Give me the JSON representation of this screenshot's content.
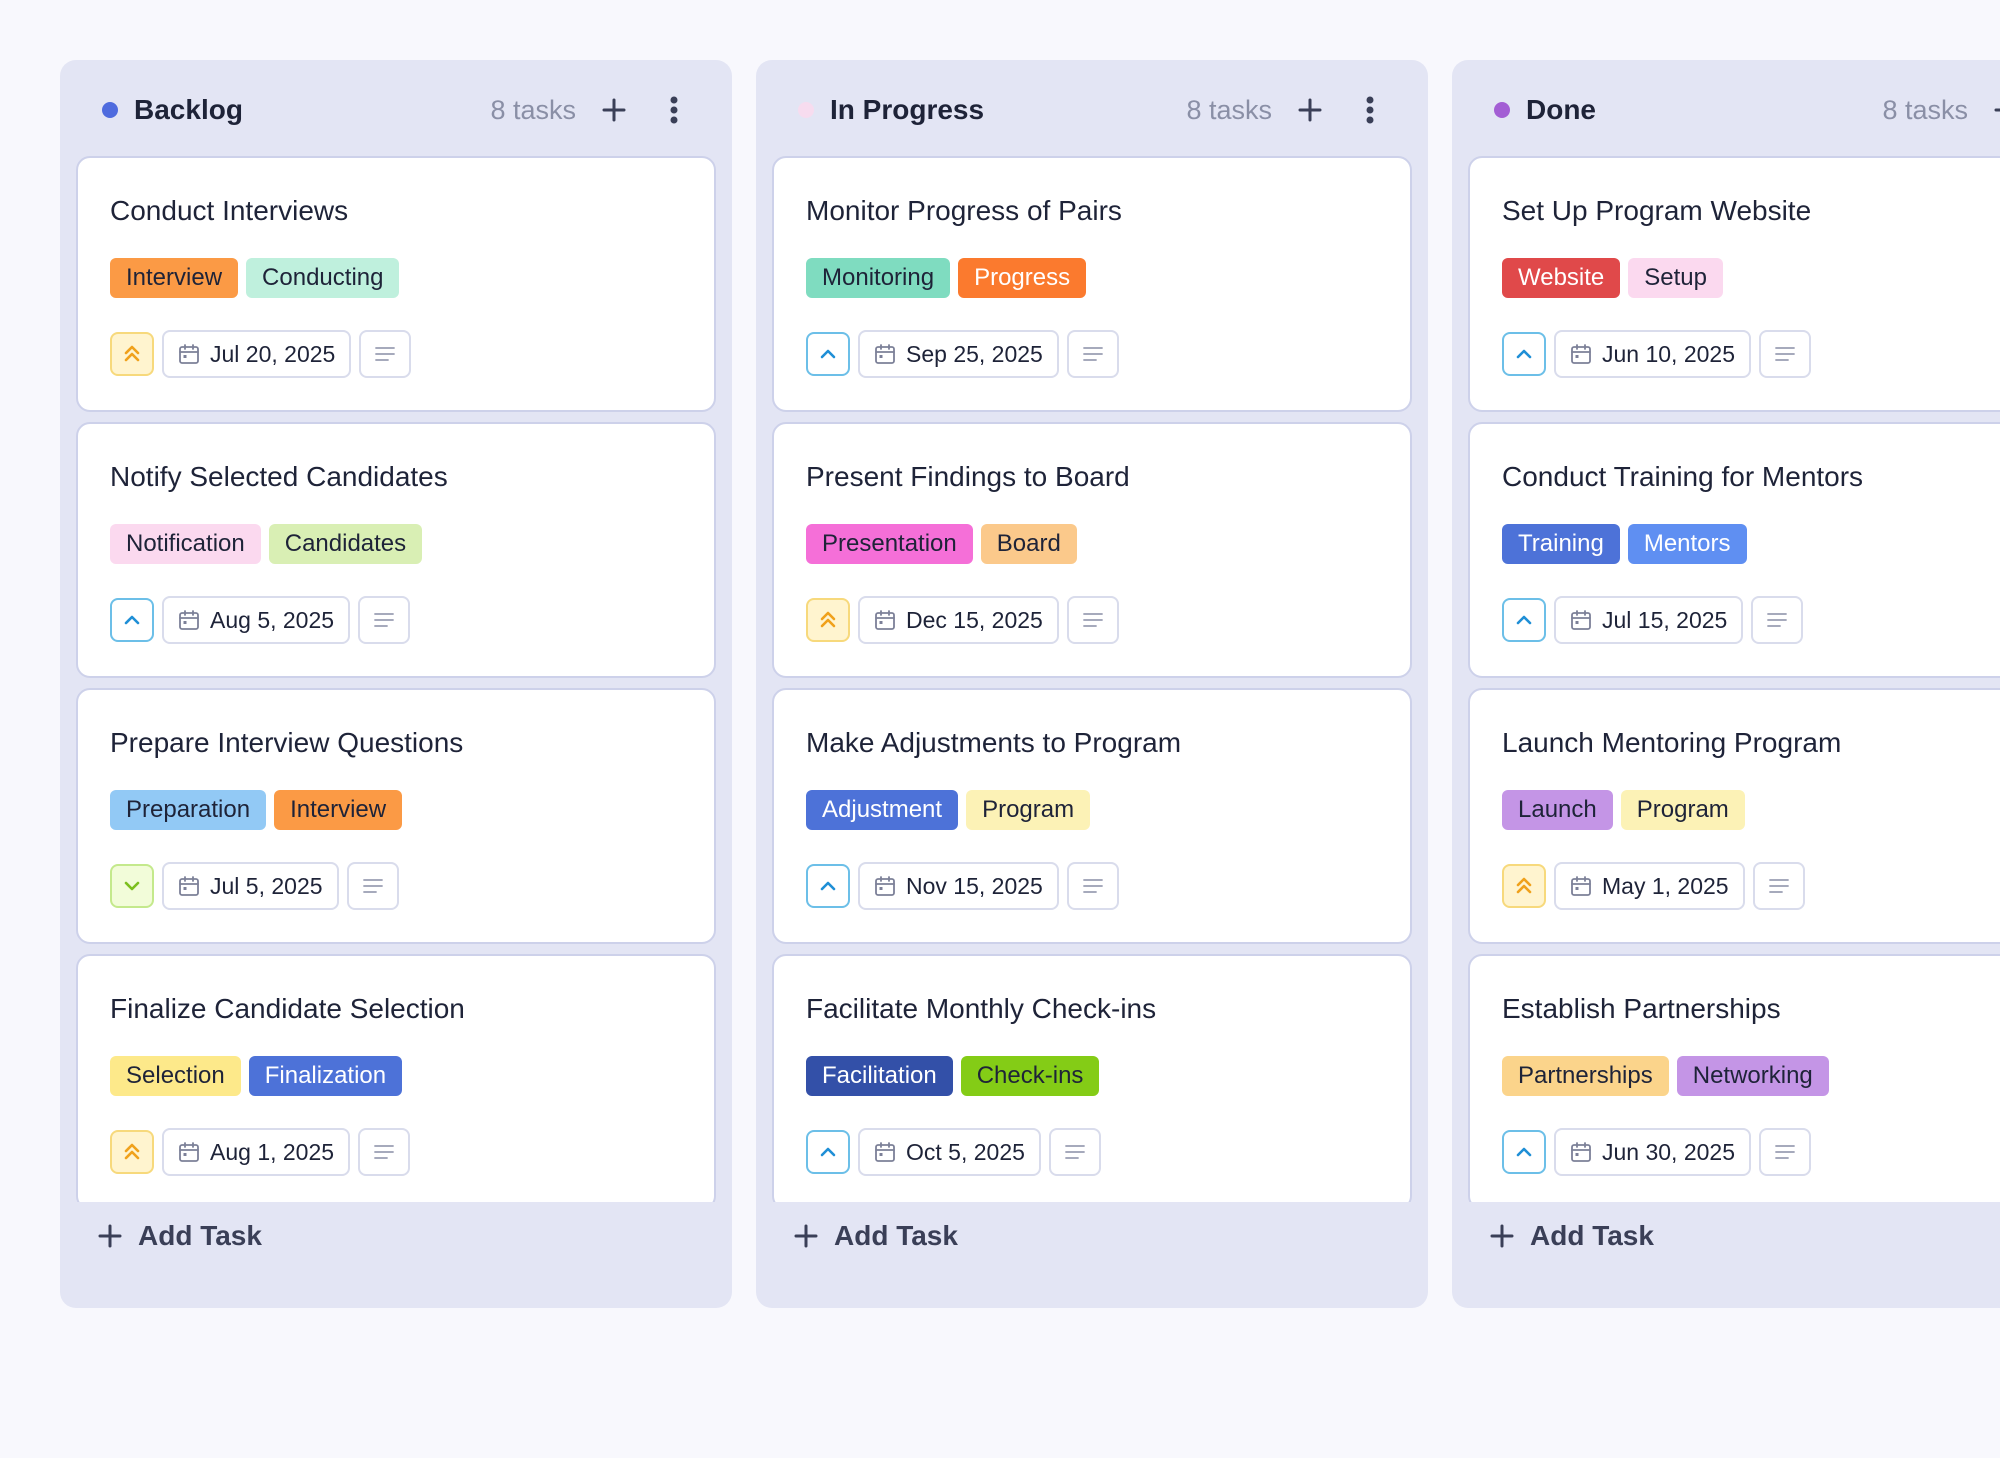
{
  "columns": [
    {
      "title": "Backlog",
      "count": "8 tasks",
      "dot_color": "#4f6bde",
      "add_task": "Add Task",
      "cards": [
        {
          "title": "Conduct Interviews",
          "tags": [
            {
              "label": "Interview",
              "bg": "#fb9a45",
              "fg": "#1e2338"
            },
            {
              "label": "Conducting",
              "bg": "#bff0dd",
              "fg": "#1e2338"
            }
          ],
          "priority": "high",
          "date": "Jul 20, 2025"
        },
        {
          "title": "Notify Selected Candidates",
          "tags": [
            {
              "label": "Notification",
              "bg": "#fbd9ef",
              "fg": "#1e2338"
            },
            {
              "label": "Candidates",
              "bg": "#d9efb4",
              "fg": "#1e2338"
            }
          ],
          "priority": "medium",
          "date": "Aug 5, 2025"
        },
        {
          "title": "Prepare Interview Questions",
          "tags": [
            {
              "label": "Preparation",
              "bg": "#92c9f5",
              "fg": "#1e2338"
            },
            {
              "label": "Interview",
              "bg": "#fb9a45",
              "fg": "#1e2338"
            }
          ],
          "priority": "low",
          "date": "Jul 5, 2025"
        },
        {
          "title": "Finalize Candidate Selection",
          "tags": [
            {
              "label": "Selection",
              "bg": "#fde98a",
              "fg": "#1e2338"
            },
            {
              "label": "Finalization",
              "bg": "#4d72d8",
              "fg": "#ffffff"
            }
          ],
          "priority": "high",
          "date": "Aug 1, 2025"
        }
      ]
    },
    {
      "title": "In Progress",
      "count": "8 tasks",
      "dot_color": "#f7dcef",
      "add_task": "Add Task",
      "cards": [
        {
          "title": "Monitor Progress of Pairs",
          "tags": [
            {
              "label": "Monitoring",
              "bg": "#7fdcc0",
              "fg": "#1e2338"
            },
            {
              "label": "Progress",
              "bg": "#fb7a2e",
              "fg": "#ffffff"
            }
          ],
          "priority": "medium",
          "date": "Sep 25, 2025"
        },
        {
          "title": "Present Findings to Board",
          "tags": [
            {
              "label": "Presentation",
              "bg": "#f56fd8",
              "fg": "#1e2338"
            },
            {
              "label": "Board",
              "bg": "#fbc98b",
              "fg": "#1e2338"
            }
          ],
          "priority": "high",
          "date": "Dec 15, 2025"
        },
        {
          "title": "Make Adjustments to Program",
          "tags": [
            {
              "label": "Adjustment",
              "bg": "#4d72d8",
              "fg": "#ffffff"
            },
            {
              "label": "Program",
              "bg": "#fcf2b6",
              "fg": "#1e2338"
            }
          ],
          "priority": "medium",
          "date": "Nov 15, 2025"
        },
        {
          "title": "Facilitate Monthly Check-ins",
          "tags": [
            {
              "label": "Facilitation",
              "bg": "#3350a8",
              "fg": "#ffffff"
            },
            {
              "label": "Check-ins",
              "bg": "#84cc16",
              "fg": "#1e2338"
            }
          ],
          "priority": "medium",
          "date": "Oct 5, 2025"
        }
      ]
    },
    {
      "title": "Done",
      "count": "8 tasks",
      "dot_color": "#a35ed4",
      "add_task": "Add Task",
      "cards": [
        {
          "title": "Set Up Program Website",
          "tags": [
            {
              "label": "Website",
              "bg": "#e0494a",
              "fg": "#ffffff"
            },
            {
              "label": "Setup",
              "bg": "#fbd9ef",
              "fg": "#1e2338"
            }
          ],
          "priority": "medium",
          "date": "Jun 10, 2025"
        },
        {
          "title": "Conduct Training for Mentors",
          "tags": [
            {
              "label": "Training",
              "bg": "#4d72d8",
              "fg": "#ffffff"
            },
            {
              "label": "Mentors",
              "bg": "#5f8ff2",
              "fg": "#ffffff"
            }
          ],
          "priority": "medium",
          "date": "Jul 15, 2025"
        },
        {
          "title": "Launch Mentoring Program",
          "tags": [
            {
              "label": "Launch",
              "bg": "#c495e6",
              "fg": "#1e2338"
            },
            {
              "label": "Program",
              "bg": "#fcf2b6",
              "fg": "#1e2338"
            }
          ],
          "priority": "high",
          "date": "May 1, 2025"
        },
        {
          "title": "Establish Partnerships",
          "tags": [
            {
              "label": "Partnerships",
              "bg": "#fbd48b",
              "fg": "#1e2338"
            },
            {
              "label": "Networking",
              "bg": "#c495e6",
              "fg": "#1e2338"
            }
          ],
          "priority": "medium",
          "date": "Jun 30, 2025"
        }
      ]
    }
  ]
}
